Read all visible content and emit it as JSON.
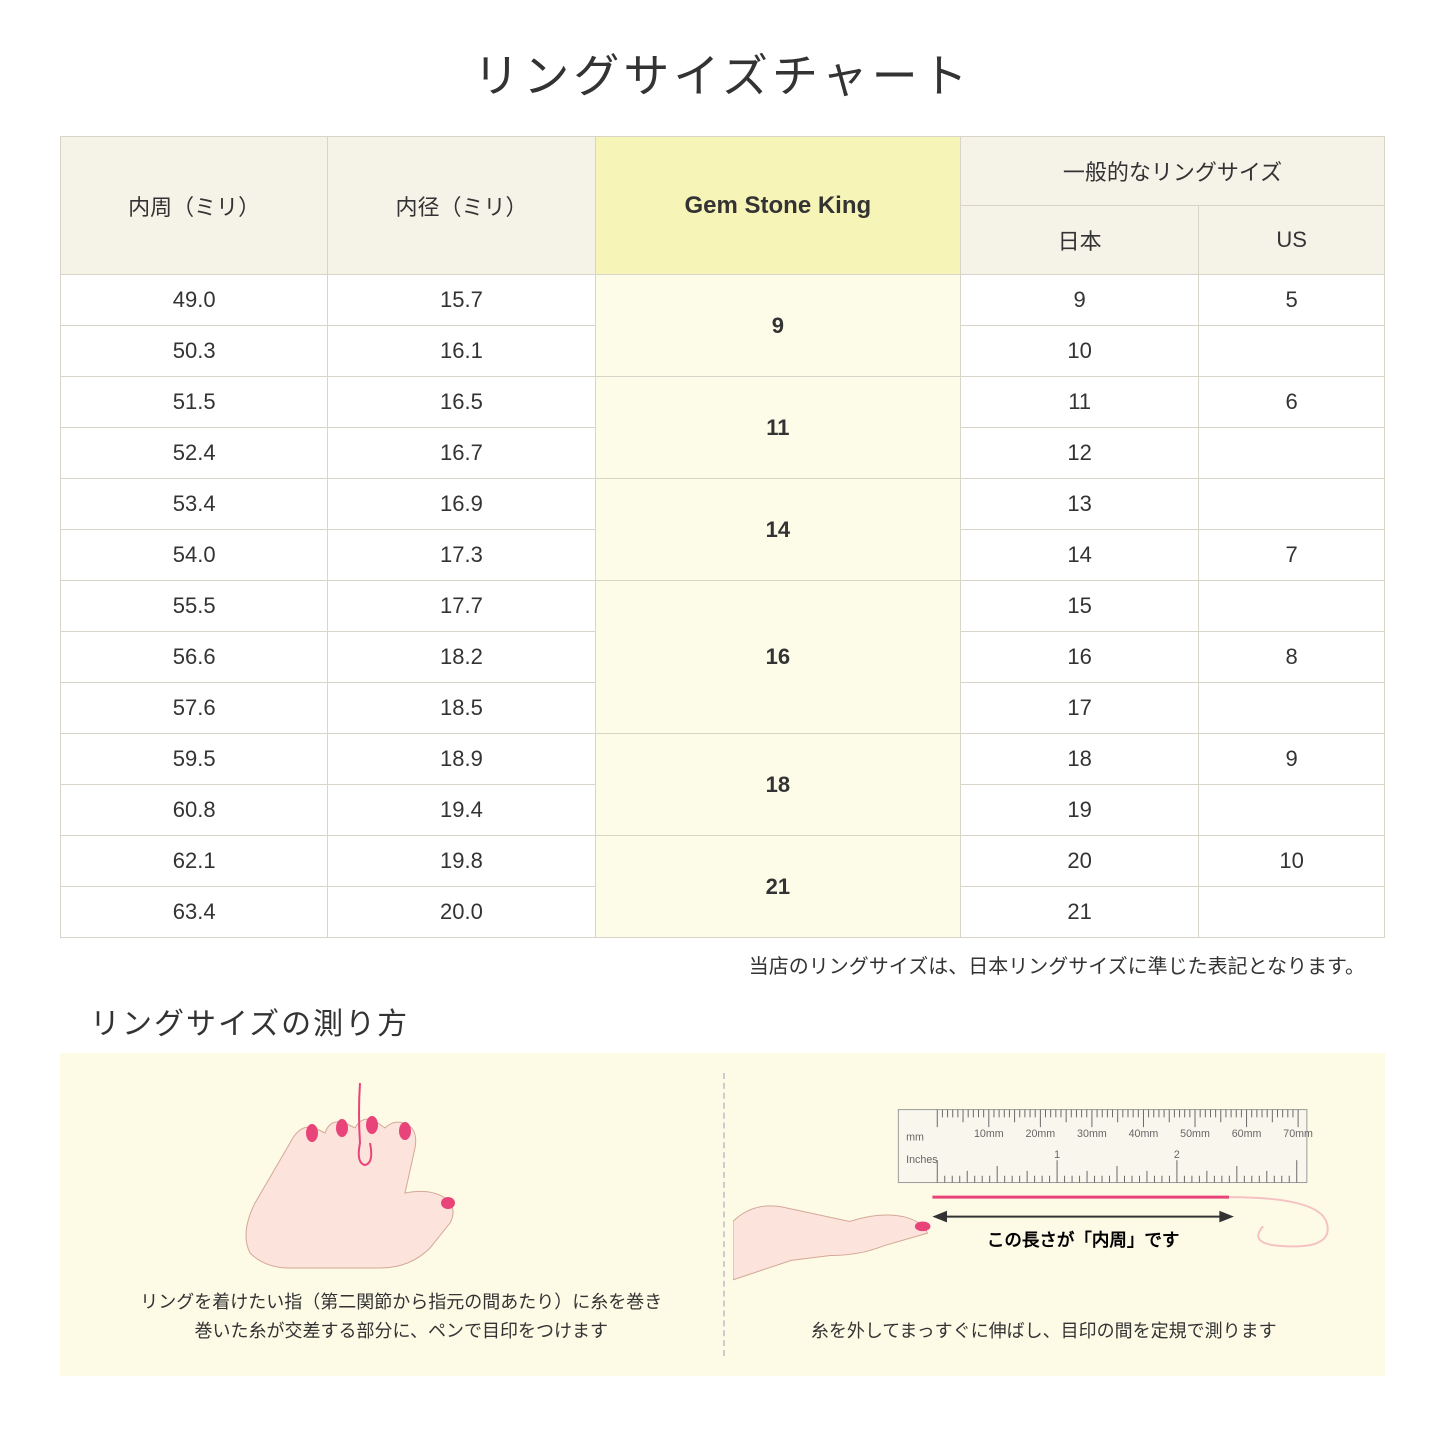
{
  "title": "リングサイズチャート",
  "table": {
    "headers": {
      "circumference": "内周（ミリ）",
      "diameter": "内径（ミリ）",
      "gsk": "Gem Stone King",
      "general": "一般的なリングサイズ",
      "japan": "日本",
      "us": "US"
    },
    "header_bg": "#f5f2e8",
    "gsk_header_bg": "#f7f4b8",
    "gsk_cell_bg": "#fdfce8",
    "border_color": "#d8d4c8",
    "rows": [
      {
        "circ": "49.0",
        "diam": "15.7",
        "japan": "9",
        "us": "5"
      },
      {
        "circ": "50.3",
        "diam": "16.1",
        "japan": "10",
        "us": ""
      },
      {
        "circ": "51.5",
        "diam": "16.5",
        "japan": "11",
        "us": "6"
      },
      {
        "circ": "52.4",
        "diam": "16.7",
        "japan": "12",
        "us": ""
      },
      {
        "circ": "53.4",
        "diam": "16.9",
        "japan": "13",
        "us": ""
      },
      {
        "circ": "54.0",
        "diam": "17.3",
        "japan": "14",
        "us": "7"
      },
      {
        "circ": "55.5",
        "diam": "17.7",
        "japan": "15",
        "us": ""
      },
      {
        "circ": "56.6",
        "diam": "18.2",
        "japan": "16",
        "us": "8"
      },
      {
        "circ": "57.6",
        "diam": "18.5",
        "japan": "17",
        "us": ""
      },
      {
        "circ": "59.5",
        "diam": "18.9",
        "japan": "18",
        "us": "9"
      },
      {
        "circ": "60.8",
        "diam": "19.4",
        "japan": "19",
        "us": ""
      },
      {
        "circ": "62.1",
        "diam": "19.8",
        "japan": "20",
        "us": "10"
      },
      {
        "circ": "63.4",
        "diam": "20.0",
        "japan": "21",
        "us": ""
      }
    ],
    "gsk_groups": [
      {
        "value": "9",
        "span": 2
      },
      {
        "value": "11",
        "span": 2
      },
      {
        "value": "14",
        "span": 2
      },
      {
        "value": "16",
        "span": 3
      },
      {
        "value": "18",
        "span": 2
      },
      {
        "value": "21",
        "span": 2
      }
    ]
  },
  "note": "当店のリングサイズは、日本リングサイズに準じた表記となります。",
  "measure": {
    "title": "リングサイズの測り方",
    "instruction_bg": "#fdfae6",
    "panel1": {
      "text_line1": "リングを着けたい指（第二関節から指元の間あたり）に糸を巻き",
      "text_line2": "巻いた糸が交差する部分に、ペンで目印をつけます"
    },
    "panel2": {
      "ruler_label_mm": "mm",
      "ruler_label_inches": "Inches",
      "ruler_ticks_mm": [
        "10mm",
        "20mm",
        "30mm",
        "40mm",
        "50mm",
        "60mm",
        "70mm"
      ],
      "ruler_ticks_in": [
        "1",
        "2"
      ],
      "length_label": "この長さが「内周」です",
      "text": "糸を外してまっすぐに伸ばし、目印の間を定規で測ります"
    },
    "skin_color": "#fce4dc",
    "nail_color": "#e8447a",
    "thread_color": "#e8447a"
  }
}
